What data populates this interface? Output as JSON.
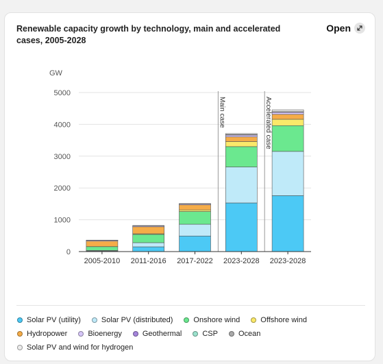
{
  "header": {
    "title": "Renewable capacity growth by technology, main and accelerated cases, 2005-2028",
    "open_label": "Open"
  },
  "chart_data": {
    "type": "bar",
    "stacked": true,
    "unit_label": "GW",
    "ylim": [
      0,
      5000
    ],
    "yticks": [
      0,
      1000,
      2000,
      3000,
      4000,
      5000
    ],
    "grid": true,
    "legend_position": "bottom",
    "categories": [
      "2005-2010",
      "2011-2016",
      "2017-2022",
      "2023-2028",
      "2023-2028"
    ],
    "annotations": [
      {
        "text": "Main case",
        "between": [
          2,
          3
        ]
      },
      {
        "text": "Accelerated case",
        "between": [
          3,
          4
        ]
      }
    ],
    "series": [
      {
        "name": "Solar PV (utility)",
        "color": "#4cc9f5",
        "values": [
          20,
          150,
          490,
          1530,
          1760
        ]
      },
      {
        "name": "Solar PV (distributed)",
        "color": "#bfeaf9",
        "values": [
          15,
          130,
          370,
          1130,
          1390
        ]
      },
      {
        "name": "Onshore wind",
        "color": "#6be88f",
        "values": [
          120,
          260,
          400,
          640,
          810
        ]
      },
      {
        "name": "Offshore wind",
        "color": "#fbe96a",
        "values": [
          3,
          20,
          50,
          160,
          200
        ]
      },
      {
        "name": "Hydropower",
        "color": "#f5ac48",
        "values": [
          170,
          220,
          160,
          145,
          155
        ]
      },
      {
        "name": "Bioenergy",
        "color": "#d6c6f8",
        "values": [
          25,
          30,
          30,
          60,
          65
        ]
      },
      {
        "name": "Geothermal",
        "color": "#a585dc",
        "values": [
          2,
          3,
          3,
          5,
          6
        ]
      },
      {
        "name": "CSP",
        "color": "#9be2cd",
        "values": [
          2,
          3,
          3,
          8,
          9
        ]
      },
      {
        "name": "Ocean",
        "color": "#aaaaaa",
        "values": [
          1,
          1,
          1,
          2,
          2
        ]
      },
      {
        "name": "Solar PV and wind for hydrogen",
        "color": "#ececec",
        "values": [
          0,
          0,
          0,
          30,
          60
        ]
      }
    ]
  },
  "legend_rows": [
    [
      0,
      1,
      2,
      3
    ],
    [
      4,
      5,
      6,
      7,
      8
    ],
    [
      9
    ]
  ]
}
